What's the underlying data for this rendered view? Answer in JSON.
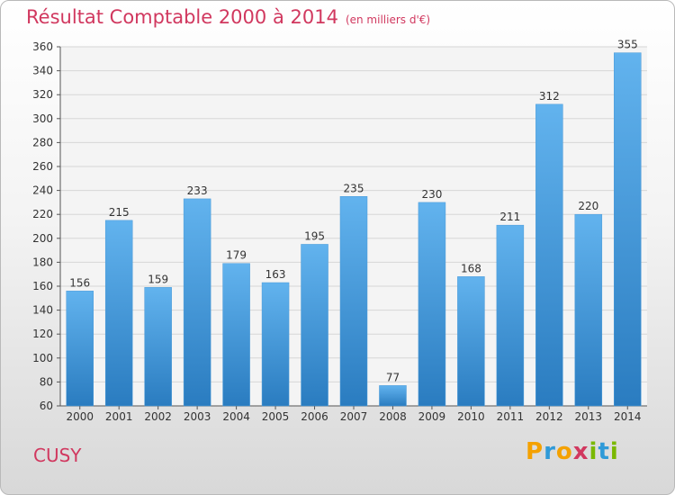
{
  "title": "Résultat Comptable 2000 à 2014",
  "subtitle": "(en milliers d'€)",
  "location": "CUSY",
  "brand": {
    "letters": [
      "P",
      "r",
      "o",
      "x",
      "i",
      "t",
      "i"
    ],
    "colors": [
      "#f4a100",
      "#2f9ad8",
      "#f4a100",
      "#d1385f",
      "#7ab800",
      "#2f9ad8",
      "#7ab800"
    ]
  },
  "colors": {
    "title": "#d1385f",
    "bar_light": "#62b3ee",
    "bar_dark": "#2a7cc0",
    "grid": "#d6d6d6"
  },
  "chart_data": {
    "type": "bar",
    "title": "Résultat Comptable 2000 à 2014",
    "xlabel": "",
    "ylabel": "",
    "ylim": [
      60,
      360
    ],
    "yticks": [
      60,
      80,
      100,
      120,
      140,
      160,
      180,
      200,
      220,
      240,
      260,
      280,
      300,
      320,
      340,
      360
    ],
    "grid": true,
    "categories": [
      "2000",
      "2001",
      "2002",
      "2003",
      "2004",
      "2005",
      "2006",
      "2007",
      "2008",
      "2009",
      "2010",
      "2011",
      "2012",
      "2013",
      "2014"
    ],
    "values": [
      156,
      215,
      159,
      233,
      179,
      163,
      195,
      235,
      77,
      230,
      168,
      211,
      312,
      220,
      355
    ]
  }
}
